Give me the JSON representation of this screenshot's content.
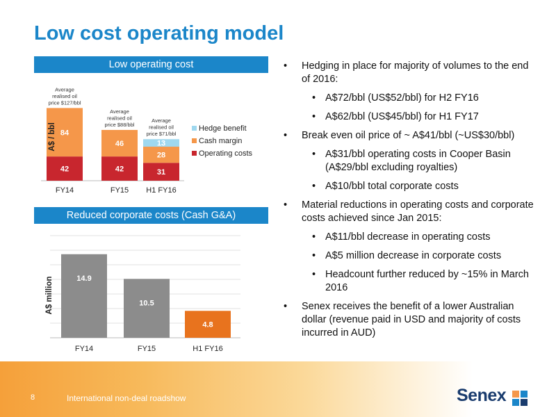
{
  "page": {
    "title": "Low cost operating model",
    "page_number": "8",
    "footer": "International non-deal roadshow",
    "logo": "Senex"
  },
  "panels": {
    "top_header": "Low operating cost",
    "bottom_header": "Reduced corporate  costs (Cash G&A)"
  },
  "bullets": [
    {
      "level": 1,
      "text": "Hedging in place for majority of volumes to the end of 2016:"
    },
    {
      "level": 2,
      "text": "A$72/bbl (US$52/bbl) for H2 FY16"
    },
    {
      "level": 2,
      "text": "A$62/bbl (US$45/bbl) for H1 FY17"
    },
    {
      "level": 1,
      "text": "Break even oil price of ~ A$41/bbl (~US$30/bbl)"
    },
    {
      "level": 2,
      "text": "A$31/bbl operating costs in Cooper Basin (A$29/bbl excluding royalties)"
    },
    {
      "level": 2,
      "text": "A$10/bbl total corporate costs"
    },
    {
      "level": 1,
      "text": "Material reductions in operating costs and corporate costs achieved since Jan 2015:"
    },
    {
      "level": 2,
      "text": "A$11/bbl decrease in operating costs"
    },
    {
      "level": 2,
      "text": "A$5 million decrease in corporate costs"
    },
    {
      "level": 2,
      "text": "Headcount further reduced by ~15% in March 2016"
    },
    {
      "level": 1,
      "text": "Senex receives the benefit of a lower Australian dollar (revenue paid in USD and majority of costs incurred in AUD)"
    }
  ],
  "colors": {
    "accent": "#1b86c9",
    "operating_costs": "#c8262e",
    "cash_margin": "#f5974a",
    "hedge_benefit": "#9fd8ef",
    "corporate_bar": "#8c8c8c",
    "corporate_highlight": "#e8731e",
    "logo_text": "#1a3c6e"
  },
  "chart_data": [
    {
      "type": "bar",
      "stacked": true,
      "ylabel": "A$ / bbl",
      "categories": [
        "FY14",
        "FY15",
        "H1 FY16"
      ],
      "series": [
        {
          "name": "Operating costs",
          "values": [
            42,
            42,
            31
          ]
        },
        {
          "name": "Cash margin",
          "values": [
            84,
            46,
            28
          ]
        },
        {
          "name": "Hedge benefit",
          "values": [
            0,
            0,
            13
          ]
        }
      ],
      "annotations": [
        "Average realised oil price $127/bbl",
        "Average realised oil price $88/bbl",
        "Average realised oil price $71/bbl"
      ],
      "legend": "right",
      "grid": false
    },
    {
      "type": "bar",
      "ylabel": "A$ million",
      "categories": [
        "FY14",
        "FY15",
        "H1 FY16"
      ],
      "values": [
        14.9,
        10.5,
        4.8
      ],
      "grid": true
    }
  ]
}
